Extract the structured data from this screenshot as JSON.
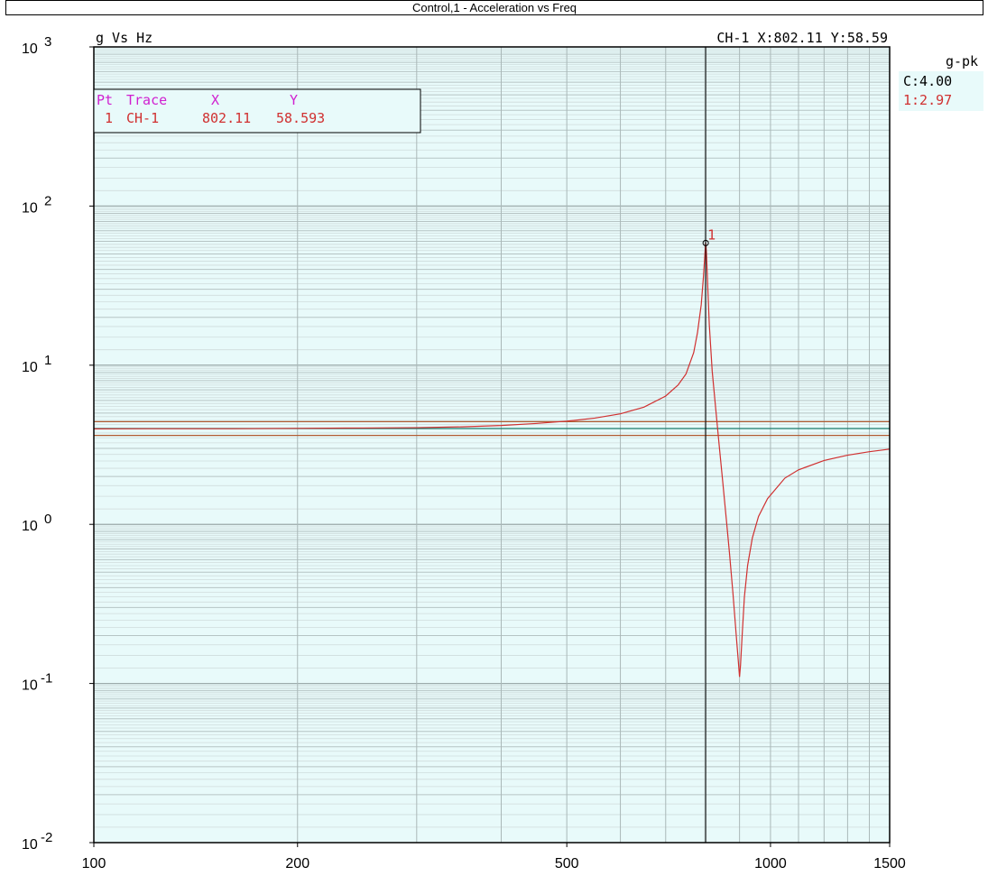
{
  "window": {
    "title": "Control,1 - Acceleration vs Freq"
  },
  "plot": {
    "units_label": "g Vs Hz",
    "cursor_readout": "CH-1 X:802.11 Y:58.59",
    "legend": {
      "header": "g-pk",
      "entries": [
        {
          "label": "C:4.00",
          "color": "#000000"
        },
        {
          "label": "1:2.97",
          "color": "#d03030"
        }
      ]
    },
    "marker_table": {
      "headers": [
        "Pt",
        "Trace",
        "X",
        "Y"
      ],
      "header_color": "#d020d0",
      "rows": [
        {
          "pt": "1",
          "trace": "CH-1",
          "x": "802.11",
          "y": "58.593"
        }
      ],
      "row_color": "#d03030"
    },
    "marker_label": "1"
  },
  "chart_data": {
    "type": "line",
    "title": "Control,1 - Acceleration vs Freq",
    "xlabel": "Hz",
    "ylabel": "g",
    "xscale": "log",
    "yscale": "log",
    "xlim": [
      100,
      1500
    ],
    "ylim": [
      0.01,
      1000
    ],
    "grid": true,
    "background_color": "#e8fafa",
    "x_ticks": [
      {
        "value": 100,
        "label": "100"
      },
      {
        "value": 200,
        "label": "200"
      },
      {
        "value": 500,
        "label": "500"
      },
      {
        "value": 1000,
        "label": "1000"
      },
      {
        "value": 1500,
        "label": "1500"
      }
    ],
    "y_ticks": [
      {
        "value": 1000,
        "base": "10",
        "exp": "3"
      },
      {
        "value": 100,
        "base": "10",
        "exp": "2"
      },
      {
        "value": 10,
        "base": "10",
        "exp": "1"
      },
      {
        "value": 1,
        "base": "10",
        "exp": "0"
      },
      {
        "value": 0.1,
        "base": "10",
        "exp": "-1"
      },
      {
        "value": 0.01,
        "base": "10",
        "exp": "-2"
      }
    ],
    "reference_lines": [
      {
        "value": 4.0,
        "color": "#1a7a6a"
      },
      {
        "value": 4.42,
        "color": "#b05a30"
      },
      {
        "value": 3.62,
        "color": "#b05a30"
      }
    ],
    "cursor_x": 802.11,
    "marker_point": {
      "x": 802.11,
      "y": 58.593
    },
    "series": [
      {
        "name": "CH-1",
        "color": "#d03030",
        "points": [
          [
            100,
            3.98
          ],
          [
            120,
            3.99
          ],
          [
            140,
            3.99
          ],
          [
            160,
            3.99
          ],
          [
            200,
            4.01
          ],
          [
            250,
            4.03
          ],
          [
            300,
            4.05
          ],
          [
            350,
            4.1
          ],
          [
            400,
            4.18
          ],
          [
            450,
            4.3
          ],
          [
            500,
            4.45
          ],
          [
            550,
            4.65
          ],
          [
            600,
            4.95
          ],
          [
            650,
            5.45
          ],
          [
            700,
            6.4
          ],
          [
            730,
            7.5
          ],
          [
            750,
            8.8
          ],
          [
            770,
            12
          ],
          [
            780,
            16
          ],
          [
            790,
            24
          ],
          [
            796,
            36
          ],
          [
            800,
            50
          ],
          [
            802.11,
            58.593
          ],
          [
            804,
            52
          ],
          [
            808,
            30
          ],
          [
            812,
            18
          ],
          [
            820,
            9.2
          ],
          [
            830,
            5.3
          ],
          [
            840,
            3.1
          ],
          [
            850,
            1.85
          ],
          [
            860,
            1.1
          ],
          [
            870,
            0.65
          ],
          [
            880,
            0.37
          ],
          [
            890,
            0.2
          ],
          [
            896,
            0.14
          ],
          [
            900,
            0.11
          ],
          [
            903,
            0.13
          ],
          [
            908,
            0.2
          ],
          [
            915,
            0.35
          ],
          [
            925,
            0.55
          ],
          [
            940,
            0.82
          ],
          [
            960,
            1.12
          ],
          [
            990,
            1.45
          ],
          [
            1050,
            1.95
          ],
          [
            1100,
            2.2
          ],
          [
            1200,
            2.52
          ],
          [
            1300,
            2.72
          ],
          [
            1400,
            2.86
          ],
          [
            1500,
            2.97
          ]
        ]
      }
    ]
  }
}
